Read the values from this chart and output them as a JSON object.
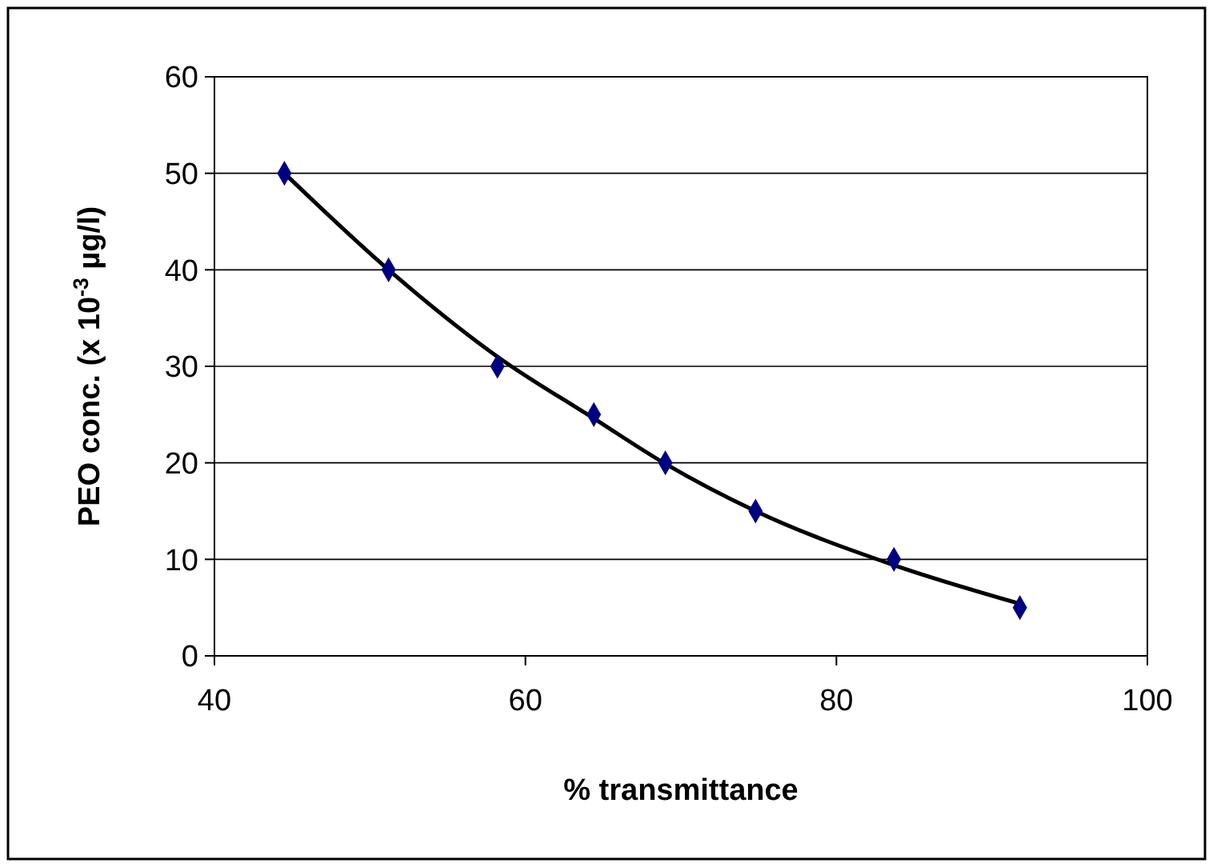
{
  "chart_data": {
    "type": "scatter",
    "xlabel": "% transmittance",
    "ylabel": "PEO conc. (x 10$^{-3}$ µg/l)",
    "xlim": [
      40,
      100
    ],
    "xticks": [
      40,
      60,
      80,
      100
    ],
    "ylim": [
      0,
      60
    ],
    "yticks": [
      0,
      10,
      20,
      30,
      40,
      50,
      60
    ],
    "grid": "y",
    "series": [
      {
        "color": "#000080",
        "marker": "diamond",
        "x": [
          44.5,
          51.2,
          58.2,
          64.4,
          69.0,
          74.8,
          83.7,
          91.8
        ],
        "values": [
          50,
          40,
          30,
          25,
          20,
          15,
          10,
          5
        ]
      },
      {
        "type": "line",
        "color": "#000000",
        "marker": "none",
        "line_style": "solid",
        "x": [
          44.5,
          51.2,
          58.2,
          64.4,
          69.0,
          74.8,
          83.7,
          91.8
        ],
        "values": [
          50,
          40,
          31,
          24.6,
          19.9,
          15,
          9.4,
          5.4
        ]
      }
    ]
  }
}
